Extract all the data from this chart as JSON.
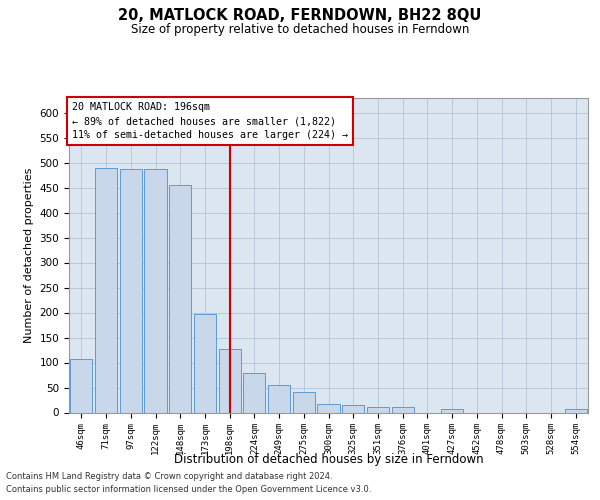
{
  "title": "20, MATLOCK ROAD, FERNDOWN, BH22 8QU",
  "subtitle": "Size of property relative to detached houses in Ferndown",
  "xlabel": "Distribution of detached houses by size in Ferndown",
  "ylabel": "Number of detached properties",
  "categories": [
    "46sqm",
    "71sqm",
    "97sqm",
    "122sqm",
    "148sqm",
    "173sqm",
    "198sqm",
    "224sqm",
    "249sqm",
    "275sqm",
    "300sqm",
    "325sqm",
    "351sqm",
    "376sqm",
    "401sqm",
    "427sqm",
    "452sqm",
    "478sqm",
    "503sqm",
    "528sqm",
    "554sqm"
  ],
  "values": [
    107,
    490,
    487,
    487,
    456,
    197,
    127,
    80,
    55,
    42,
    18,
    15,
    12,
    12,
    0,
    7,
    0,
    0,
    0,
    0,
    7
  ],
  "bar_color": "#c8d8ea",
  "bar_edge_color": "#5b9bd5",
  "grid_color": "#b8c8da",
  "background_color": "#dce6f0",
  "vline_x_index": 6,
  "vline_color": "#cc0000",
  "annotation_title": "20 MATLOCK ROAD: 196sqm",
  "annotation_line1": "← 89% of detached houses are smaller (1,822)",
  "annotation_line2": "11% of semi-detached houses are larger (224) →",
  "footer1": "Contains HM Land Registry data © Crown copyright and database right 2024.",
  "footer2": "Contains public sector information licensed under the Open Government Licence v3.0.",
  "ylim": [
    0,
    630
  ],
  "yticks": [
    0,
    50,
    100,
    150,
    200,
    250,
    300,
    350,
    400,
    450,
    500,
    550,
    600
  ]
}
